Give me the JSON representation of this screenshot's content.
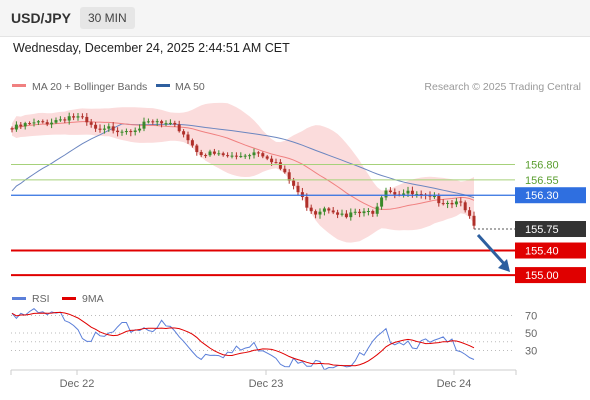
{
  "header": {
    "symbol": "USD/JPY",
    "timeframe": "30 MIN",
    "datetime": "Wednesday, December 24, 2025 2:44:51 AM CET"
  },
  "chart_data": [
    {
      "type": "candlestick",
      "legend": [
        {
          "label": "MA 20 + Bollinger Bands",
          "color": "#f08080"
        },
        {
          "label": "MA 50",
          "color": "#2f5f9f"
        }
      ],
      "credit": "Research © 2025 Trading Central",
      "x_ticks": [
        "Dec 22",
        "Dec 23",
        "Dec 24"
      ],
      "price_levels": [
        {
          "value": 156.8,
          "label": "156.80",
          "color": "#a6d17a",
          "text_color": "#5a9e2f",
          "kind": "resistance"
        },
        {
          "value": 156.55,
          "label": "156.55",
          "color": "#a6d17a",
          "text_color": "#5a9e2f",
          "kind": "resistance"
        },
        {
          "value": 156.3,
          "label": "156.30",
          "color": "#2f6fe0",
          "kind": "pivot"
        },
        {
          "value": 155.75,
          "label": "155.75",
          "color": "#333333",
          "kind": "last"
        },
        {
          "value": 155.4,
          "label": "155.40",
          "color": "#e00000",
          "kind": "support"
        },
        {
          "value": 155.0,
          "label": "155.00",
          "color": "#e00000",
          "kind": "support"
        }
      ],
      "ylim": [
        154.92,
        157.85
      ],
      "forecast_arrow": {
        "from": 155.75,
        "to": 155.05,
        "color": "#2d5f9f"
      },
      "colors": {
        "bull": "#3a8a2a",
        "bear": "#b0302a",
        "band": "#fbdcdc",
        "ma20": "#f08080",
        "ma50": "#6b86c0"
      }
    },
    {
      "type": "line",
      "series": [
        {
          "name": "RSI",
          "color": "#5b7fd9"
        },
        {
          "name": "9MA",
          "color": "#e00000"
        }
      ],
      "y_ticks": [
        70,
        50,
        30
      ],
      "ylim": [
        10,
        82
      ]
    }
  ]
}
